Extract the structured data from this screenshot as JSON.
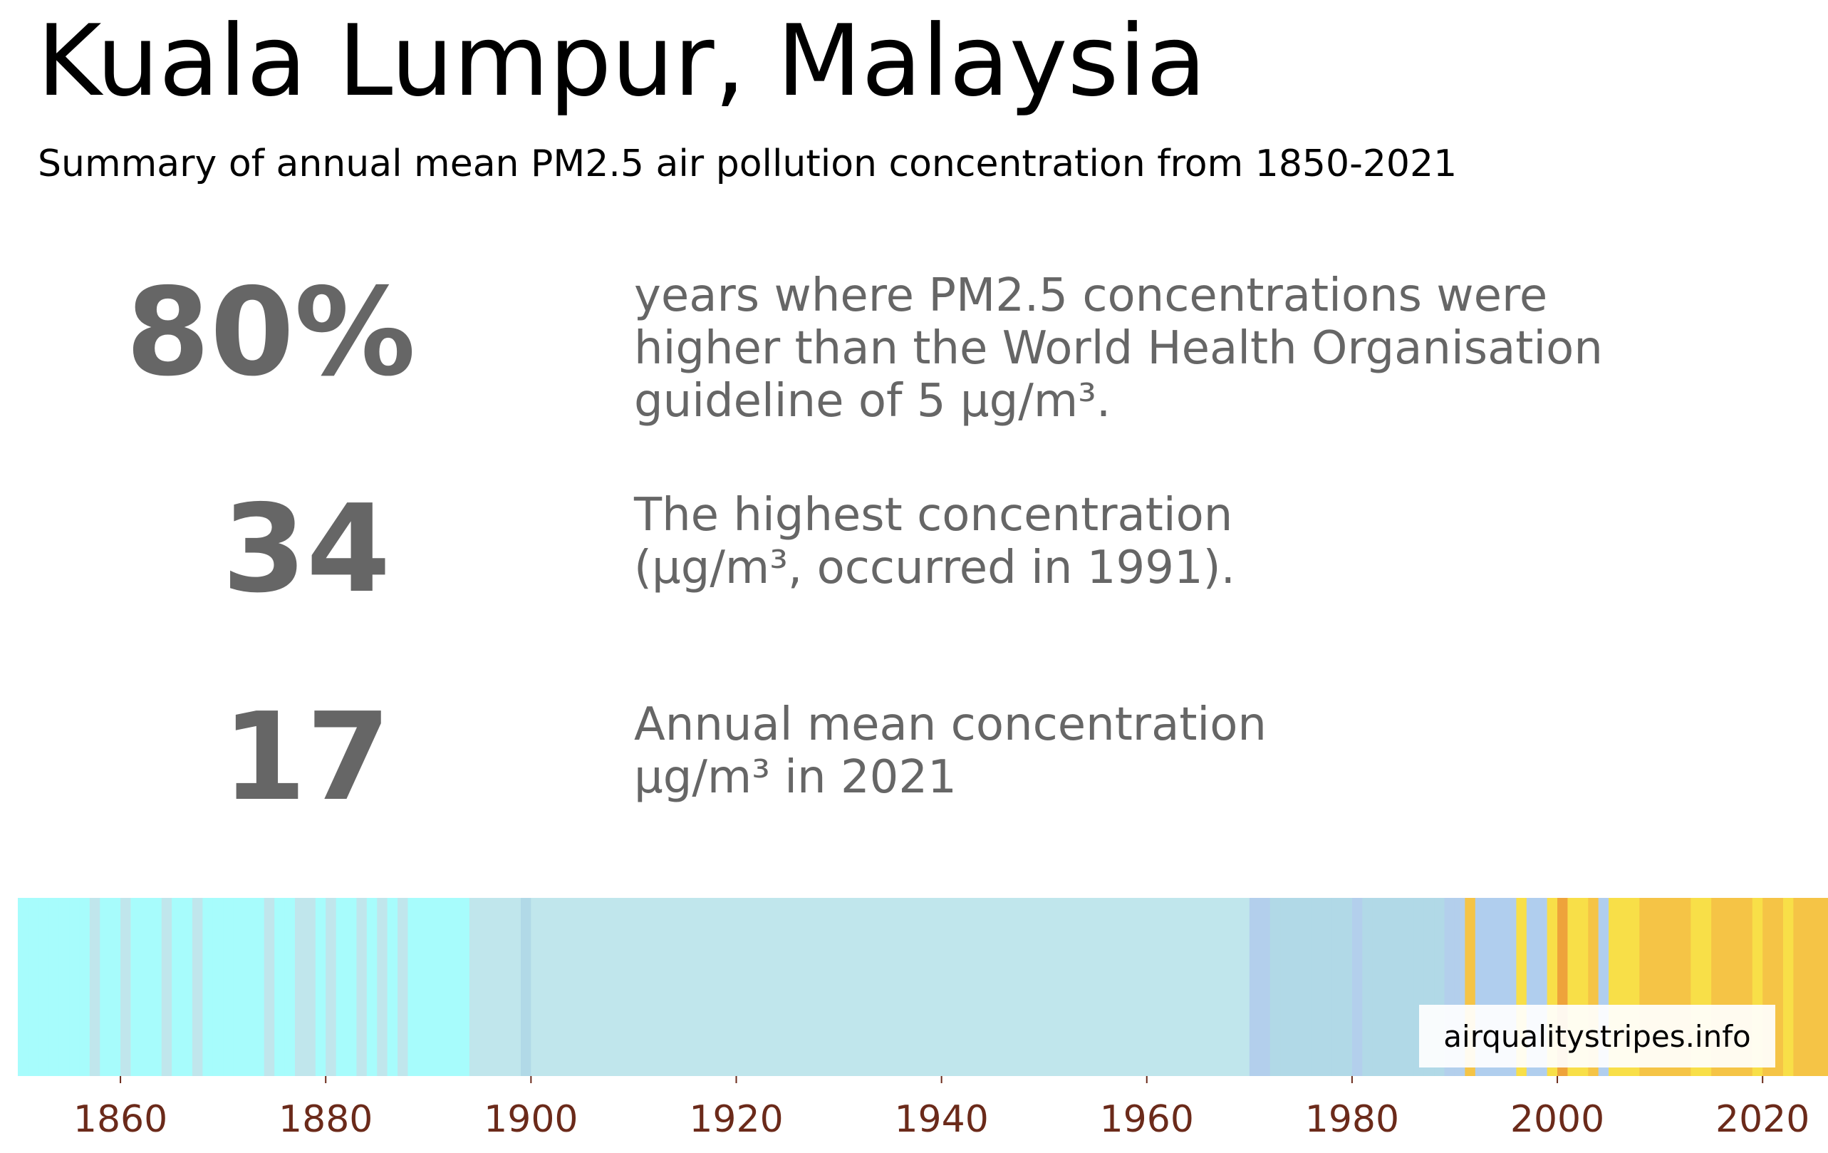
{
  "header": {
    "title": "Kuala Lumpur, Malaysia",
    "subtitle": "Summary of annual mean PM2.5 air pollution concentration from 1850-2021"
  },
  "stats": [
    {
      "value": "80%",
      "lines": [
        "years where PM2.5 concentrations were",
        "higher than the World Health Organisation",
        "guideline of 5 μg/m³."
      ]
    },
    {
      "value": "34",
      "lines": [
        "The highest concentration",
        "(μg/m³, occurred in 1991)."
      ]
    },
    {
      "value": "17",
      "lines": [
        "Annual mean concentration",
        "μg/m³ in 2021"
      ]
    }
  ],
  "credit": "airqualitystripes.info",
  "colors": {
    "text_primary": "#000000",
    "text_stat": "#666666",
    "tick_label": "#6b2a1a",
    "bands": {
      "A": "#a7fcfc",
      "B": "#c0e6ec",
      "C": "#b1d9e7",
      "D": "#b3cfec",
      "E": "#b0ceee",
      "F": "#f8df48",
      "G": "#f5c446",
      "H": "#efc54a",
      "I": "#eea33b"
    }
  },
  "chart_data": {
    "type": "heatmap",
    "title": "",
    "xlabel": "",
    "ylabel": "",
    "x_range": [
      1850,
      2022
    ],
    "x_ticks": [
      1860,
      1880,
      1900,
      1920,
      1940,
      1960,
      1980,
      2000,
      2020
    ],
    "grid": false,
    "legend": "none",
    "stripe_band_by_year": "AAAAAAABAABAAABAABAAAAAABAABBABAABABABAAAAAABBBBBCBBBBBBBBBBBBBBBBBBBBBBBBBBBBBBBBBBBBBBBBBBBBBBBBBBBBBBBBBBBBBBBBBBBBBBDDCCCCCCCCDCCCCCCCCDDGEEEEFEEFIFFGEFFFGGGGGFFGGGGFGGFGGGGIFFFFF",
    "start_year": 1850
  }
}
